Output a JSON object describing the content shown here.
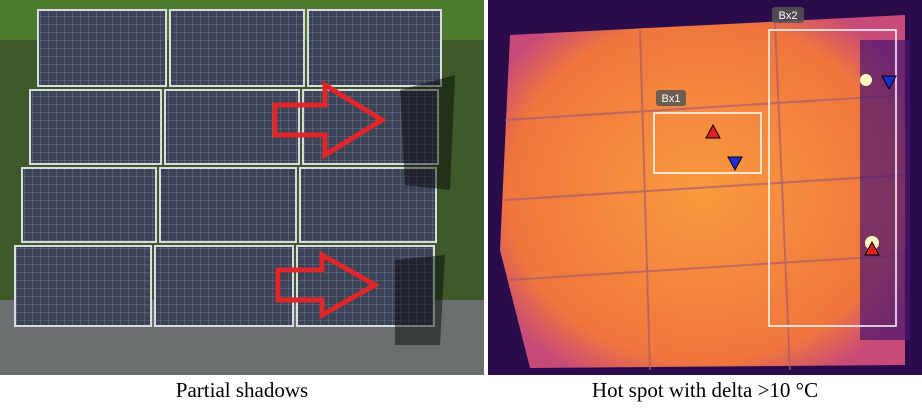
{
  "left_image": {
    "caption": "Partial shadows"
  },
  "right_image": {
    "caption": "Hot spot with delta >10 °C",
    "boxes": [
      {
        "label": "Bx1"
      },
      {
        "label": "Bx2"
      }
    ]
  }
}
